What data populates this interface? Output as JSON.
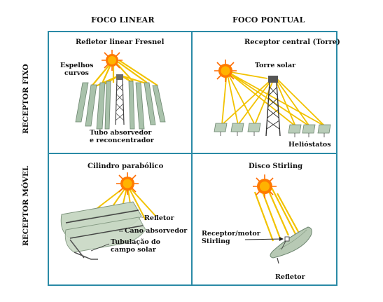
{
  "columns": {
    "linear": "FOCO LINEAR",
    "point": "FOCO PONTUAL"
  },
  "rows": {
    "fixed": "RECEPTOR FIXO",
    "mobile": "RECEPTOR MÓVEL"
  },
  "fresnel": {
    "title": "Refletor linear Fresnel",
    "mirrors_line1": "Espelhos",
    "mirrors_line2": "curvos",
    "tube_line1": "Tubo absorvedor",
    "tube_line2": "e reconcentrador"
  },
  "tower": {
    "title": "Receptor central (Torre)",
    "tower_label": "Torre solar",
    "heliostats": "Helióstatos"
  },
  "trough": {
    "title": "Cilindro parabólico",
    "reflector": "Refletor",
    "pipe": "Cano absorvedor",
    "field_line1": "Tubulação do",
    "field_line2": "campo solar"
  },
  "dish": {
    "title": "Disco Stirling",
    "receiver_line1": "Receptor/motor",
    "receiver_line2": "Stirling",
    "reflector": "Refletor"
  },
  "colors": {
    "grid": "#2a8aa6",
    "sun": "#ff6a00",
    "ray": "#f2c200",
    "mirror": "#9fb8a3"
  },
  "icons": [
    "sun-icon",
    "fresnel-mirror-icon",
    "solar-tower-icon",
    "heliostat-icon",
    "parabolic-trough-icon",
    "stirling-dish-icon"
  ]
}
